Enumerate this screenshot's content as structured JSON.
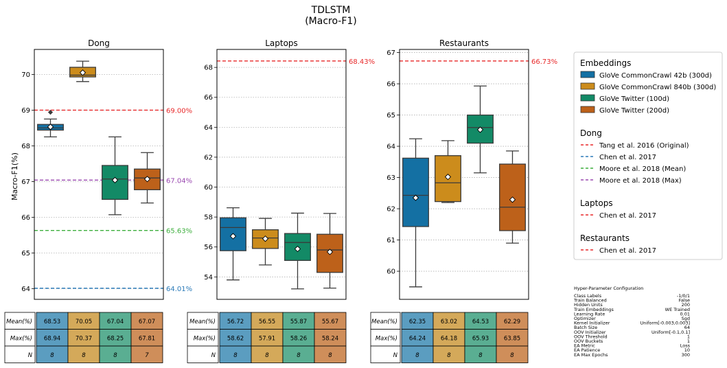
{
  "figure": {
    "title_line1": "TDLSTM",
    "title_line2": "(Macro-F1)",
    "ylabel": "Macro-F1(%)"
  },
  "colors": {
    "series": [
      "#1470a3",
      "#cc8c1c",
      "#138a66",
      "#bd611a"
    ],
    "table": [
      "#5b9dc0",
      "#d4a95a",
      "#5aae92",
      "#cf8e5a"
    ],
    "red": "#e8292a",
    "blue": "#2a7ab8",
    "green": "#3cae3c",
    "purple": "#9a48b0",
    "grid": "#b0b0b0"
  },
  "chart_data": [
    {
      "type": "box",
      "title": "Dong",
      "ylim": [
        63.7,
        70.7
      ],
      "yticks": [
        64,
        65,
        66,
        67,
        68,
        69,
        70
      ],
      "grid": true,
      "boxes": [
        {
          "q1": 68.44,
          "median": 68.5,
          "q3": 68.6,
          "whisker_low": 68.25,
          "whisker_high": 68.75,
          "mean": 68.53,
          "outliers": [
            68.94
          ]
        },
        {
          "q1": 69.93,
          "median": 69.98,
          "q3": 70.2,
          "whisker_low": 69.8,
          "whisker_high": 70.37,
          "mean": 70.05,
          "outliers": []
        },
        {
          "q1": 66.5,
          "median": 67.07,
          "q3": 67.45,
          "whisker_low": 66.07,
          "whisker_high": 68.25,
          "mean": 67.04,
          "outliers": []
        },
        {
          "q1": 66.77,
          "median": 67.1,
          "q3": 67.35,
          "whisker_low": 66.4,
          "whisker_high": 67.81,
          "mean": 67.07,
          "outliers": []
        }
      ],
      "hlines": [
        {
          "value": 69.0,
          "label": "69.00%",
          "color": "#e8292a"
        },
        {
          "value": 67.04,
          "label": "67.04%",
          "color": "#9a48b0"
        },
        {
          "value": 65.63,
          "label": "65.63%",
          "color": "#3cae3c"
        },
        {
          "value": 64.01,
          "label": "64.01%",
          "color": "#2a7ab8"
        }
      ]
    },
    {
      "type": "box",
      "title": "Laptops",
      "ylim": [
        52.5,
        69.2
      ],
      "yticks": [
        54,
        56,
        58,
        60,
        62,
        64,
        66,
        68
      ],
      "grid": true,
      "boxes": [
        {
          "q1": 55.75,
          "median": 57.3,
          "q3": 57.95,
          "whisker_low": 53.8,
          "whisker_high": 58.62,
          "mean": 56.72,
          "outliers": []
        },
        {
          "q1": 55.9,
          "median": 56.6,
          "q3": 57.15,
          "whisker_low": 54.8,
          "whisker_high": 57.91,
          "mean": 56.55,
          "outliers": []
        },
        {
          "q1": 55.1,
          "median": 56.3,
          "q3": 56.9,
          "whisker_low": 53.2,
          "whisker_high": 58.26,
          "mean": 55.87,
          "outliers": []
        },
        {
          "q1": 54.3,
          "median": 55.8,
          "q3": 56.85,
          "whisker_low": 53.25,
          "whisker_high": 58.24,
          "mean": 55.67,
          "outliers": []
        }
      ],
      "hlines": [
        {
          "value": 68.43,
          "label": "68.43%",
          "color": "#e8292a"
        }
      ]
    },
    {
      "type": "box",
      "title": "Restaurants",
      "ylim": [
        59.1,
        67.1
      ],
      "yticks": [
        60,
        61,
        62,
        63,
        64,
        65,
        66,
        67
      ],
      "grid": true,
      "boxes": [
        {
          "q1": 61.43,
          "median": 62.43,
          "q3": 63.62,
          "whisker_low": 59.5,
          "whisker_high": 64.24,
          "mean": 62.35,
          "outliers": []
        },
        {
          "q1": 62.23,
          "median": 62.83,
          "q3": 63.7,
          "whisker_low": 62.2,
          "whisker_high": 64.18,
          "mean": 63.02,
          "outliers": []
        },
        {
          "q1": 64.1,
          "median": 64.6,
          "q3": 65.0,
          "whisker_low": 63.15,
          "whisker_high": 65.93,
          "mean": 64.53,
          "outliers": []
        },
        {
          "q1": 61.3,
          "median": 62.05,
          "q3": 63.43,
          "whisker_low": 60.9,
          "whisker_high": 63.85,
          "mean": 62.29,
          "outliers": []
        }
      ],
      "hlines": [
        {
          "value": 66.73,
          "label": "66.73%",
          "color": "#e8292a"
        }
      ]
    }
  ],
  "tables": [
    {
      "rows": [
        {
          "label": "Mean(%)",
          "values": [
            "68.53",
            "70.05",
            "67.04",
            "67.07"
          ]
        },
        {
          "label": "Max(%)",
          "values": [
            "68.94",
            "70.37",
            "68.25",
            "67.81"
          ]
        },
        {
          "label": "N",
          "values": [
            "8",
            "8",
            "8",
            "7"
          ]
        }
      ]
    },
    {
      "rows": [
        {
          "label": "Mean(%)",
          "values": [
            "56.72",
            "56.55",
            "55.87",
            "55.67"
          ]
        },
        {
          "label": "Max(%)",
          "values": [
            "58.62",
            "57.91",
            "58.26",
            "58.24"
          ]
        },
        {
          "label": "N",
          "values": [
            "8",
            "8",
            "8",
            "8"
          ]
        }
      ]
    },
    {
      "rows": [
        {
          "label": "Mean(%)",
          "values": [
            "62.35",
            "63.02",
            "64.53",
            "62.29"
          ]
        },
        {
          "label": "Max(%)",
          "values": [
            "64.24",
            "64.18",
            "65.93",
            "63.85"
          ]
        },
        {
          "label": "N",
          "values": [
            "8",
            "8",
            "8",
            "8"
          ]
        }
      ]
    }
  ],
  "legend": {
    "sections": [
      {
        "title": "Embeddings",
        "kind": "patch",
        "items": [
          {
            "label": "GloVe CommonCrawl 42b (300d)",
            "color": "#1470a3"
          },
          {
            "label": "GloVe CommonCrawl 840b (300d)",
            "color": "#cc8c1c"
          },
          {
            "label": "GloVe Twitter (100d)",
            "color": "#138a66"
          },
          {
            "label": "GloVe Twitter (200d)",
            "color": "#bd611a"
          }
        ]
      },
      {
        "title": "Dong",
        "kind": "line",
        "items": [
          {
            "label": "Tang et al. 2016 (Original)",
            "color": "#e8292a"
          },
          {
            "label": "Chen et al. 2017",
            "color": "#2a7ab8"
          },
          {
            "label": "Moore et al. 2018 (Mean)",
            "color": "#3cae3c"
          },
          {
            "label": "Moore et al. 2018 (Max)",
            "color": "#9a48b0"
          }
        ]
      },
      {
        "title": "Laptops",
        "kind": "line",
        "items": [
          {
            "label": "Chen et al. 2017",
            "color": "#e8292a"
          }
        ]
      },
      {
        "title": "Restaurants",
        "kind": "line",
        "items": [
          {
            "label": "Chen et al. 2017",
            "color": "#e8292a"
          }
        ]
      }
    ]
  },
  "hyperparams": {
    "title": "Hyper-Parameter Configuration",
    "rows": [
      {
        "key": "Class Labels",
        "value": "-1/0/1"
      },
      {
        "key": "Train Balanced",
        "value": "False"
      },
      {
        "key": "Hidden Units",
        "value": "200"
      },
      {
        "key": "Train Embeddings",
        "value": "WE Trained"
      },
      {
        "key": "Learning Rate",
        "value": "0.01"
      },
      {
        "key": "Optimizer",
        "value": "Sgd"
      },
      {
        "key": "Kernel Initializer",
        "value": "Uniform[-0.003,0.003]"
      },
      {
        "key": "Batch Size",
        "value": "64"
      },
      {
        "key": "OOV Initializer",
        "value": "Uniform[-0.1,0.1]"
      },
      {
        "key": "OOV Threshold",
        "value": "1"
      },
      {
        "key": "OOV Buckets",
        "value": "1"
      },
      {
        "key": "EA Metric",
        "value": "Loss"
      },
      {
        "key": "EA Patience",
        "value": "10"
      },
      {
        "key": "EA Max Epochs",
        "value": "300"
      }
    ]
  }
}
